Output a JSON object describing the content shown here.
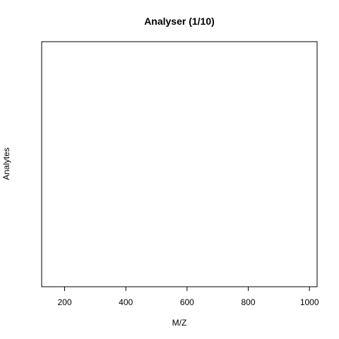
{
  "chart_data": {
    "type": "scatter",
    "title": "Analyser (1/10)",
    "xlabel": "M/Z",
    "ylabel": "Analytes",
    "xlim": [
      125,
      1025
    ],
    "xticks": [
      200,
      400,
      600,
      800,
      1000
    ],
    "ylim": [
      0,
      1
    ],
    "yticks": [],
    "grid": false,
    "series": []
  }
}
